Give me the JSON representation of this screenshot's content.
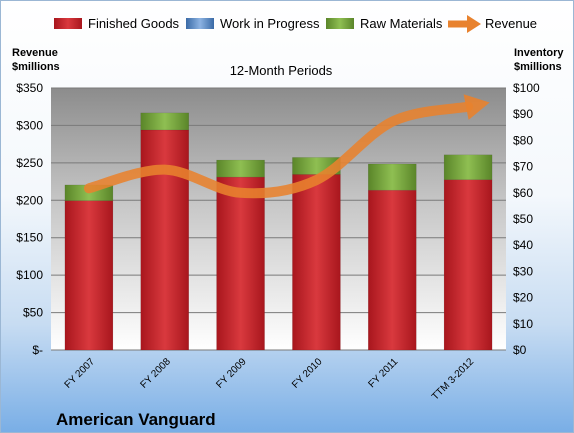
{
  "chart_data": {
    "type": "bar",
    "title": "12-Month Periods",
    "company": "American Vanguard",
    "categories": [
      "FY 2007",
      "FY 2008",
      "FY 2009",
      "FY 2010",
      "FY 2011",
      "TTM 3-2012"
    ],
    "left_axis": {
      "label_line1": "Revenue",
      "label_line2": "$millions",
      "ylim": [
        0,
        350
      ],
      "ticks": [
        0,
        50,
        100,
        150,
        200,
        250,
        300,
        350
      ],
      "tick_labels": [
        "$-",
        "$50",
        "$100",
        "$150",
        "$200",
        "$250",
        "$300",
        "$350"
      ]
    },
    "right_axis": {
      "label_line1": "Inventory",
      "label_line2": "$millions",
      "ylim": [
        0,
        100
      ],
      "ticks": [
        0,
        10,
        20,
        30,
        40,
        50,
        60,
        70,
        80,
        90,
        100
      ],
      "tick_labels": [
        "$0",
        "$10",
        "$20",
        "$30",
        "$40",
        "$50",
        "$60",
        "$70",
        "$80",
        "$90",
        "$100"
      ]
    },
    "stacked": true,
    "series": [
      {
        "name": "Finished Goods",
        "axis": "right",
        "color": "#c0262c",
        "values": [
          57,
          84,
          66,
          67,
          61,
          65
        ]
      },
      {
        "name": "Work in Progress",
        "axis": "right",
        "color": "#4f81bd",
        "values": [
          0,
          0,
          0,
          0,
          0,
          0
        ]
      },
      {
        "name": "Raw Materials",
        "axis": "right",
        "color": "#6e9a35",
        "values": [
          6,
          6.5,
          6.5,
          6.5,
          10,
          9.5
        ]
      },
      {
        "name": "Revenue",
        "axis": "left",
        "type": "line",
        "color": "#e8822e",
        "values": [
          216,
          241,
          210,
          227,
          305,
          325
        ]
      }
    ],
    "legend_position": "top",
    "grid": true
  }
}
